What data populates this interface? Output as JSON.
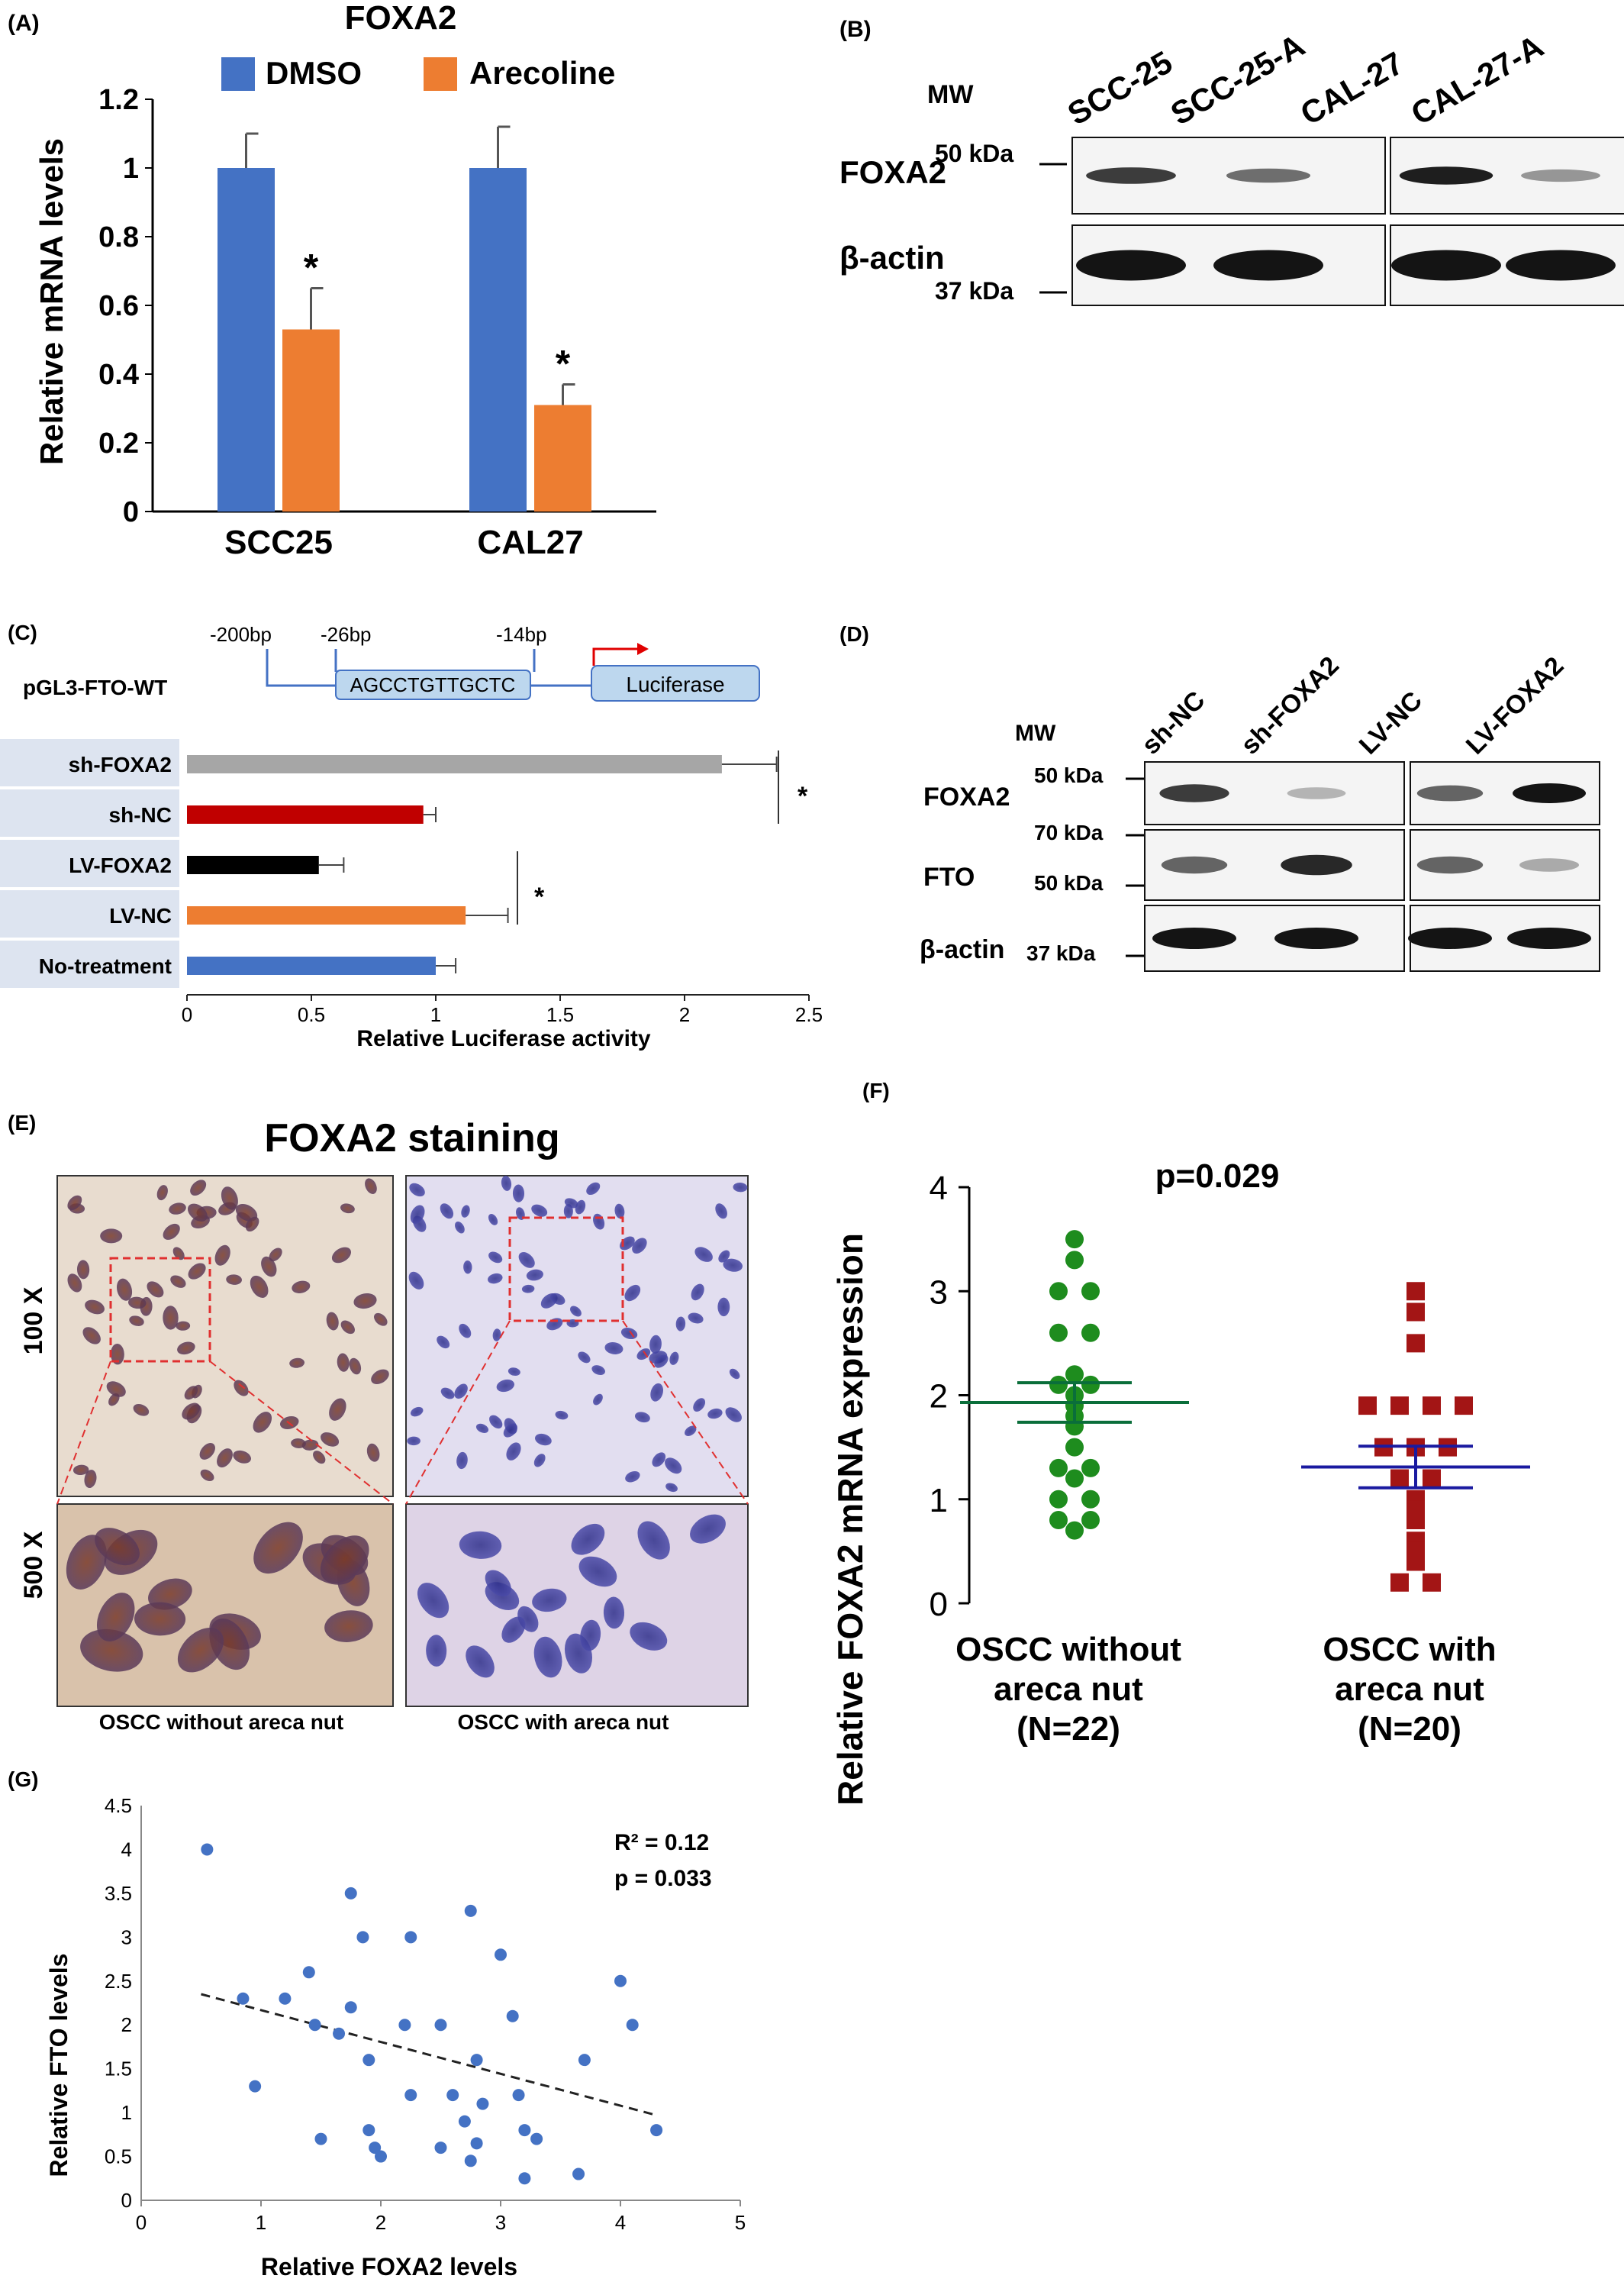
{
  "panels": {
    "A": {
      "label": "(A)",
      "chart_data": {
        "type": "bar",
        "title": "FOXA2",
        "ylabel": "Relative mRNA levels",
        "ylim": [
          0,
          1.2
        ],
        "yticks": [
          "0",
          "0.2",
          "0.4",
          "0.6",
          "0.8",
          "1",
          "1.2"
        ],
        "categories": [
          "SCC25",
          "CAL27"
        ],
        "series": [
          {
            "name": "DMSO",
            "color": "#4472c4",
            "values": [
              1.0,
              1.0
            ],
            "errors": [
              0.1,
              0.12
            ]
          },
          {
            "name": "Arecoline",
            "color": "#ed7d31",
            "values": [
              0.53,
              0.31
            ],
            "errors": [
              0.12,
              0.06
            ]
          }
        ],
        "annotations": [
          "*",
          "*"
        ],
        "legend": "top"
      }
    },
    "B": {
      "label": "(B)",
      "mw_label": "MW",
      "lanes": [
        "SCC-25",
        "SCC-25-A",
        "CAL-27",
        "CAL-27-A"
      ],
      "rows": [
        {
          "name": "FOXA2",
          "marker": "50 kDa",
          "intensity": [
            0.8,
            0.55,
            0.95,
            0.35
          ]
        },
        {
          "name": "β-actin",
          "marker": "37 kDa",
          "intensity": [
            1.0,
            1.0,
            1.0,
            1.0
          ]
        }
      ]
    },
    "C": {
      "label": "(C)",
      "construct": {
        "name": "pGL3-FTO-WT",
        "positions": [
          "-200bp",
          "-26bp",
          "-14bp"
        ],
        "sequence": "AGCCTGTTGCTC",
        "reporter": "Luciferase"
      },
      "chart_data": {
        "type": "bar",
        "orientation": "horizontal",
        "xlabel": "Relative Luciferase activity",
        "xlim": [
          0,
          2.5
        ],
        "xticks": [
          "0",
          "0.5",
          "1",
          "1.5",
          "2",
          "2.5"
        ],
        "categories": [
          "sh-FOXA2",
          "sh-NC",
          "LV-FOXA2",
          "LV-NC",
          "No-treatment"
        ],
        "values": [
          2.15,
          0.95,
          0.53,
          1.12,
          1.0
        ],
        "errors": [
          0.22,
          0.05,
          0.1,
          0.17,
          0.08
        ],
        "colors": [
          "#a6a6a6",
          "#c00000",
          "#000000",
          "#ed7d31",
          "#4472c4"
        ],
        "annotations": [
          "*",
          "*"
        ]
      }
    },
    "D": {
      "label": "(D)",
      "mw_label": "MW",
      "lanes": [
        "sh-NC",
        "sh-FOXA2",
        "LV-NC",
        "LV-FOXA2"
      ],
      "rows": [
        {
          "name": "FOXA2",
          "markers": [
            "50 kDa"
          ],
          "intensity": [
            0.8,
            0.2,
            0.6,
            1.0
          ]
        },
        {
          "name": "FTO",
          "markers": [
            "70 kDa",
            "50 kDa"
          ],
          "intensity": [
            0.6,
            0.9,
            0.6,
            0.25
          ]
        },
        {
          "name": "β-actin",
          "markers": [
            "37 kDa"
          ],
          "intensity": [
            1.0,
            1.0,
            1.0,
            1.0
          ]
        }
      ]
    },
    "E": {
      "label": "(E)",
      "title": "FOXA2 staining",
      "row_labels": [
        "100 X",
        "500 X"
      ],
      "column_labels": [
        "OSCC without areca nut",
        "OSCC with areca nut"
      ]
    },
    "F": {
      "label": "(F)",
      "chart_data": {
        "type": "scatter",
        "ylabel": "Relative FOXA2 mRNA expression",
        "ylim": [
          0,
          4
        ],
        "yticks": [
          "0",
          "1",
          "2",
          "3",
          "4"
        ],
        "pvalue": "p=0.029",
        "groups": [
          {
            "name": [
              "OSCC without",
              "areca nut",
              "(N=22)"
            ],
            "color": "#1e8c1e",
            "mean": 1.93,
            "sem": 0.19,
            "values": [
              3.5,
              3.3,
              3.0,
              3.0,
              2.6,
              2.6,
              2.2,
              2.1,
              2.1,
              2.0,
              1.9,
              1.8,
              1.7,
              1.5,
              1.3,
              1.3,
              1.2,
              1.0,
              1.0,
              0.8,
              0.8,
              0.7
            ]
          },
          {
            "name": [
              "OSCC with",
              "areca nut",
              "(N=20)"
            ],
            "color": "#a31515",
            "mean": 1.31,
            "sem": 0.2,
            "values": [
              3.0,
              2.8,
              2.5,
              1.9,
              1.9,
              1.9,
              1.9,
              1.5,
              1.5,
              1.5,
              1.2,
              1.2,
              1.0,
              0.9,
              0.8,
              0.6,
              0.5,
              0.4,
              0.2,
              0.2
            ]
          }
        ]
      }
    },
    "G": {
      "label": "(G)",
      "chart_data": {
        "type": "scatter",
        "xlabel": "Relative FOXA2 levels",
        "ylabel": "Relative FTO levels",
        "xlim": [
          0,
          5
        ],
        "ylim": [
          0,
          4.5
        ],
        "xticks": [
          "0",
          "1",
          "2",
          "3",
          "4",
          "5"
        ],
        "yticks": [
          "0",
          "0.5",
          "1",
          "1.5",
          "2",
          "2.5",
          "3",
          "3.5",
          "4",
          "4.5"
        ],
        "annotations": [
          "R² = 0.12",
          "p = 0.033"
        ],
        "trendline": {
          "x": [
            0.5,
            4.3
          ],
          "y": [
            2.35,
            0.97
          ]
        },
        "points": [
          {
            "x": 0.55,
            "y": 4.0
          },
          {
            "x": 0.85,
            "y": 2.3
          },
          {
            "x": 0.95,
            "y": 1.3
          },
          {
            "x": 1.2,
            "y": 2.3
          },
          {
            "x": 1.4,
            "y": 2.6
          },
          {
            "x": 1.45,
            "y": 2.0
          },
          {
            "x": 1.5,
            "y": 0.7
          },
          {
            "x": 1.65,
            "y": 1.9
          },
          {
            "x": 1.75,
            "y": 3.5
          },
          {
            "x": 1.75,
            "y": 2.2
          },
          {
            "x": 1.85,
            "y": 3.0
          },
          {
            "x": 1.9,
            "y": 1.6
          },
          {
            "x": 1.9,
            "y": 0.8
          },
          {
            "x": 1.95,
            "y": 0.6
          },
          {
            "x": 2.0,
            "y": 0.5
          },
          {
            "x": 2.2,
            "y": 2.0
          },
          {
            "x": 2.25,
            "y": 3.0
          },
          {
            "x": 2.25,
            "y": 1.2
          },
          {
            "x": 2.5,
            "y": 2.0
          },
          {
            "x": 2.5,
            "y": 0.6
          },
          {
            "x": 2.6,
            "y": 1.2
          },
          {
            "x": 2.7,
            "y": 0.9
          },
          {
            "x": 2.75,
            "y": 3.3
          },
          {
            "x": 2.75,
            "y": 0.45
          },
          {
            "x": 2.8,
            "y": 1.6
          },
          {
            "x": 2.8,
            "y": 0.65
          },
          {
            "x": 2.85,
            "y": 1.1
          },
          {
            "x": 3.0,
            "y": 2.8
          },
          {
            "x": 3.1,
            "y": 2.1
          },
          {
            "x": 3.15,
            "y": 1.2
          },
          {
            "x": 3.2,
            "y": 0.8
          },
          {
            "x": 3.2,
            "y": 0.25
          },
          {
            "x": 3.3,
            "y": 0.7
          },
          {
            "x": 3.65,
            "y": 0.3
          },
          {
            "x": 3.7,
            "y": 1.6
          },
          {
            "x": 4.0,
            "y": 2.5
          },
          {
            "x": 4.1,
            "y": 2.0
          },
          {
            "x": 4.3,
            "y": 0.8
          }
        ]
      }
    }
  }
}
